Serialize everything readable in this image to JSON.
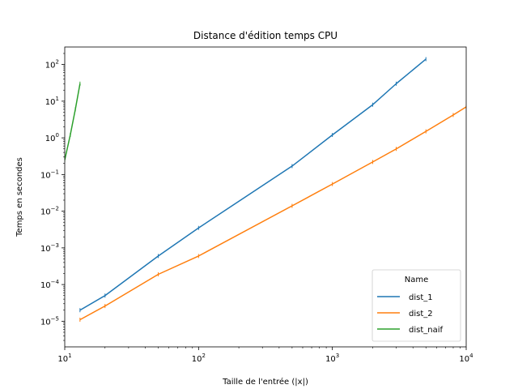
{
  "chart_data": {
    "type": "line",
    "title": "Distance d'édition temps CPU",
    "xlabel": "Taille de l'entrée (|x|)",
    "ylabel": "Temps en secondes",
    "xscale": "log",
    "yscale": "log",
    "xlim": [
      10,
      10000
    ],
    "ylim": [
      2e-06,
      300
    ],
    "x_ticks": [
      {
        "value": 10,
        "label": "10¹",
        "base": "10",
        "exp": "1"
      },
      {
        "value": 100,
        "label": "10²",
        "base": "10",
        "exp": "2"
      },
      {
        "value": 1000,
        "label": "10³",
        "base": "10",
        "exp": "3"
      },
      {
        "value": 10000,
        "label": "10⁴",
        "base": "10",
        "exp": "4"
      }
    ],
    "y_ticks": [
      {
        "value": 1e-05,
        "label": "10⁻⁵",
        "base": "10",
        "exp": "−5"
      },
      {
        "value": 0.0001,
        "label": "10⁻⁴",
        "base": "10",
        "exp": "−4"
      },
      {
        "value": 0.001,
        "label": "10⁻³",
        "base": "10",
        "exp": "−3"
      },
      {
        "value": 0.01,
        "label": "10⁻²",
        "base": "10",
        "exp": "−2"
      },
      {
        "value": 0.1,
        "label": "10⁻¹",
        "base": "10",
        "exp": "−1"
      },
      {
        "value": 1,
        "label": "10⁰",
        "base": "10",
        "exp": "0"
      },
      {
        "value": 10,
        "label": "10¹",
        "base": "10",
        "exp": "1"
      },
      {
        "value": 100,
        "label": "10²",
        "base": "10",
        "exp": "2"
      }
    ],
    "grid": false,
    "legend": {
      "title": "Name",
      "placement": "lower-right"
    },
    "series": [
      {
        "name": "dist_1",
        "color": "#1f77b4",
        "x": [
          13,
          20,
          50,
          100,
          500,
          1000,
          2000,
          3000,
          5000
        ],
        "y": [
          2e-05,
          5e-05,
          0.0006,
          0.0035,
          0.17,
          1.2,
          8,
          30,
          140
        ]
      },
      {
        "name": "dist_2",
        "color": "#ff7f0e",
        "x": [
          13,
          20,
          50,
          100,
          500,
          1000,
          2000,
          3000,
          5000,
          8000,
          10000
        ],
        "y": [
          1.1e-05,
          2.6e-05,
          0.00019,
          0.0006,
          0.014,
          0.055,
          0.22,
          0.5,
          1.5,
          4.2,
          7
        ]
      },
      {
        "name": "dist_naif",
        "color": "#2ca02c",
        "x": [
          10,
          11,
          12,
          13
        ],
        "y": [
          0.25,
          1.2,
          6,
          30
        ]
      }
    ]
  }
}
